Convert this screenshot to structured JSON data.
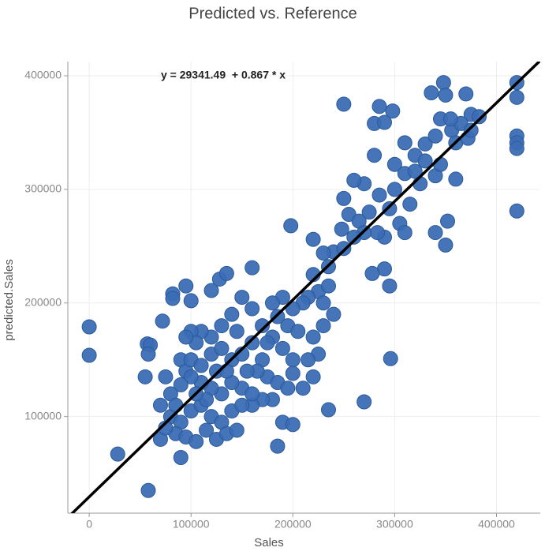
{
  "chart_data": {
    "type": "scatter",
    "title": "Predicted vs. Reference",
    "x_label": "Sales",
    "y_label": "predicted.Sales",
    "annotation": "y = 29341.49  + 0.867 * x",
    "trendline": {
      "intercept": 29341.49,
      "slope": 0.867,
      "color": "#000000"
    },
    "color": "#3b6db5",
    "grid": true,
    "xlim": [
      -21000,
      443000
    ],
    "ylim": [
      15000,
      412500
    ],
    "xticks": [
      0,
      100000,
      200000,
      300000,
      400000
    ],
    "yticks": [
      100000,
      200000,
      300000,
      400000
    ],
    "x": [
      0,
      0,
      28000,
      58000,
      57000,
      60000,
      58000,
      55000,
      72000,
      82000,
      82000,
      90000,
      95000,
      100000,
      120000,
      128000,
      135000,
      160000,
      220000,
      198000,
      250000,
      270000,
      235000,
      296000,
      185000,
      290000,
      295000,
      278000,
      350000,
      340000,
      352000,
      420000,
      420000,
      420000,
      420000,
      420000,
      420000,
      348000,
      350000,
      336000,
      370000,
      375000,
      383000,
      285000,
      280000,
      290000,
      298000,
      310000,
      320000,
      330000,
      340000,
      356000,
      360000,
      365000,
      345000,
      355000,
      372000,
      375000,
      300000,
      310000,
      320000,
      330000,
      340000,
      345000,
      360000,
      325000,
      280000,
      270000,
      260000,
      250000,
      255000,
      265000,
      275000,
      285000,
      295000,
      300000,
      305000,
      315000,
      310000,
      290000,
      283000,
      270000,
      260000,
      248000,
      240000,
      250000,
      230000,
      235000,
      220000,
      225000,
      235000,
      215000,
      230000,
      210000,
      200000,
      190000,
      180000,
      185000,
      195000,
      205000,
      220000,
      230000,
      240000,
      225000,
      215000,
      200000,
      190000,
      180000,
      170000,
      160000,
      150000,
      140000,
      145000,
      130000,
      120000,
      110000,
      100000,
      105000,
      95000,
      90000,
      95000,
      100000,
      110000,
      120000,
      130000,
      140000,
      150000,
      160000,
      170000,
      175000,
      185000,
      195000,
      200000,
      180000,
      170000,
      160000,
      150000,
      140000,
      130000,
      120000,
      110000,
      100000,
      90000,
      80000,
      75000,
      70000,
      80000,
      90000,
      100000,
      110000,
      120000,
      130000,
      140000,
      150000,
      85000,
      95000,
      105000,
      115000,
      125000,
      135000,
      70000,
      75000,
      145000,
      160000,
      190000,
      200000,
      210000,
      220000,
      175000,
      165000,
      155000,
      125000,
      135000,
      115000,
      105000,
      85000
    ],
    "values": [
      179000,
      154000,
      67000,
      35000,
      164000,
      163000,
      155000,
      135000,
      184000,
      208000,
      204000,
      64000,
      215000,
      202000,
      211000,
      221000,
      226000,
      231000,
      256000,
      268000,
      375000,
      113000,
      106000,
      151000,
      74000,
      230000,
      215000,
      226000,
      251000,
      262000,
      272000,
      394000,
      381000,
      347000,
      341000,
      336000,
      281000,
      394000,
      383000,
      385000,
      384000,
      366000,
      364000,
      373000,
      358000,
      359000,
      369000,
      341000,
      330000,
      340000,
      347000,
      352000,
      341000,
      358000,
      362000,
      362000,
      345000,
      352000,
      322000,
      314000,
      316000,
      325000,
      312000,
      322000,
      309000,
      305000,
      330000,
      305000,
      308000,
      292000,
      278000,
      272000,
      280000,
      295000,
      283000,
      300000,
      270000,
      287000,
      262000,
      258000,
      262000,
      262000,
      258000,
      265000,
      245000,
      248000,
      244000,
      232000,
      225000,
      210000,
      215000,
      205000,
      200000,
      200000,
      195000,
      205000,
      200000,
      188000,
      180000,
      175000,
      170000,
      180000,
      190000,
      155000,
      150000,
      150000,
      160000,
      170000,
      180000,
      195000,
      205000,
      190000,
      175000,
      180000,
      170000,
      175000,
      175000,
      165000,
      170000,
      150000,
      140000,
      150000,
      145000,
      155000,
      160000,
      150000,
      155000,
      165000,
      150000,
      135000,
      130000,
      125000,
      138000,
      115000,
      115000,
      110000,
      125000,
      130000,
      120000,
      125000,
      130000,
      135000,
      128000,
      120000,
      135000,
      110000,
      100000,
      95000,
      105000,
      110000,
      100000,
      95000,
      105000,
      110000,
      85000,
      82000,
      78000,
      88000,
      80000,
      85000,
      80000,
      90000,
      88000,
      120000,
      95000,
      93000,
      125000,
      135000,
      165000,
      140000,
      140000,
      140000,
      140000,
      115000,
      120000,
      110000
    ]
  }
}
